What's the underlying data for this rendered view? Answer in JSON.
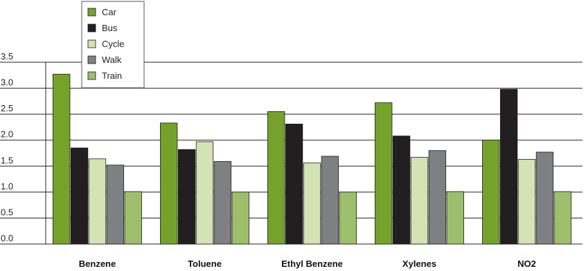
{
  "chart_data": {
    "type": "bar",
    "title": "",
    "xlabel": "",
    "ylabel": "",
    "categories": [
      "Benzene",
      "Toluene",
      "Ethyl Benzene",
      "Xylenes",
      "NO2"
    ],
    "yticks": [
      "0.0",
      "0.5",
      "1.0",
      "1.5",
      "2.0",
      "2.5",
      "3.0",
      "3.5"
    ],
    "ylim": [
      0,
      3.5
    ],
    "grid": true,
    "legend_position": "top-left",
    "series": [
      {
        "name": "Car",
        "color": "#76a22b",
        "values": [
          3.27,
          2.33,
          2.55,
          2.72,
          2.0
        ]
      },
      {
        "name": "Bus",
        "color": "#231f20",
        "values": [
          1.85,
          1.82,
          2.31,
          2.08,
          2.98
        ]
      },
      {
        "name": "Cycle",
        "color": "#d4e3b4",
        "values": [
          1.64,
          1.97,
          1.56,
          1.67,
          1.63
        ]
      },
      {
        "name": "Walk",
        "color": "#7f8083",
        "values": [
          1.52,
          1.59,
          1.69,
          1.8,
          1.77
        ]
      },
      {
        "name": "Train",
        "color": "#9dbf6b",
        "values": [
          1.01,
          1.0,
          1.0,
          1.01,
          1.01
        ]
      }
    ]
  }
}
